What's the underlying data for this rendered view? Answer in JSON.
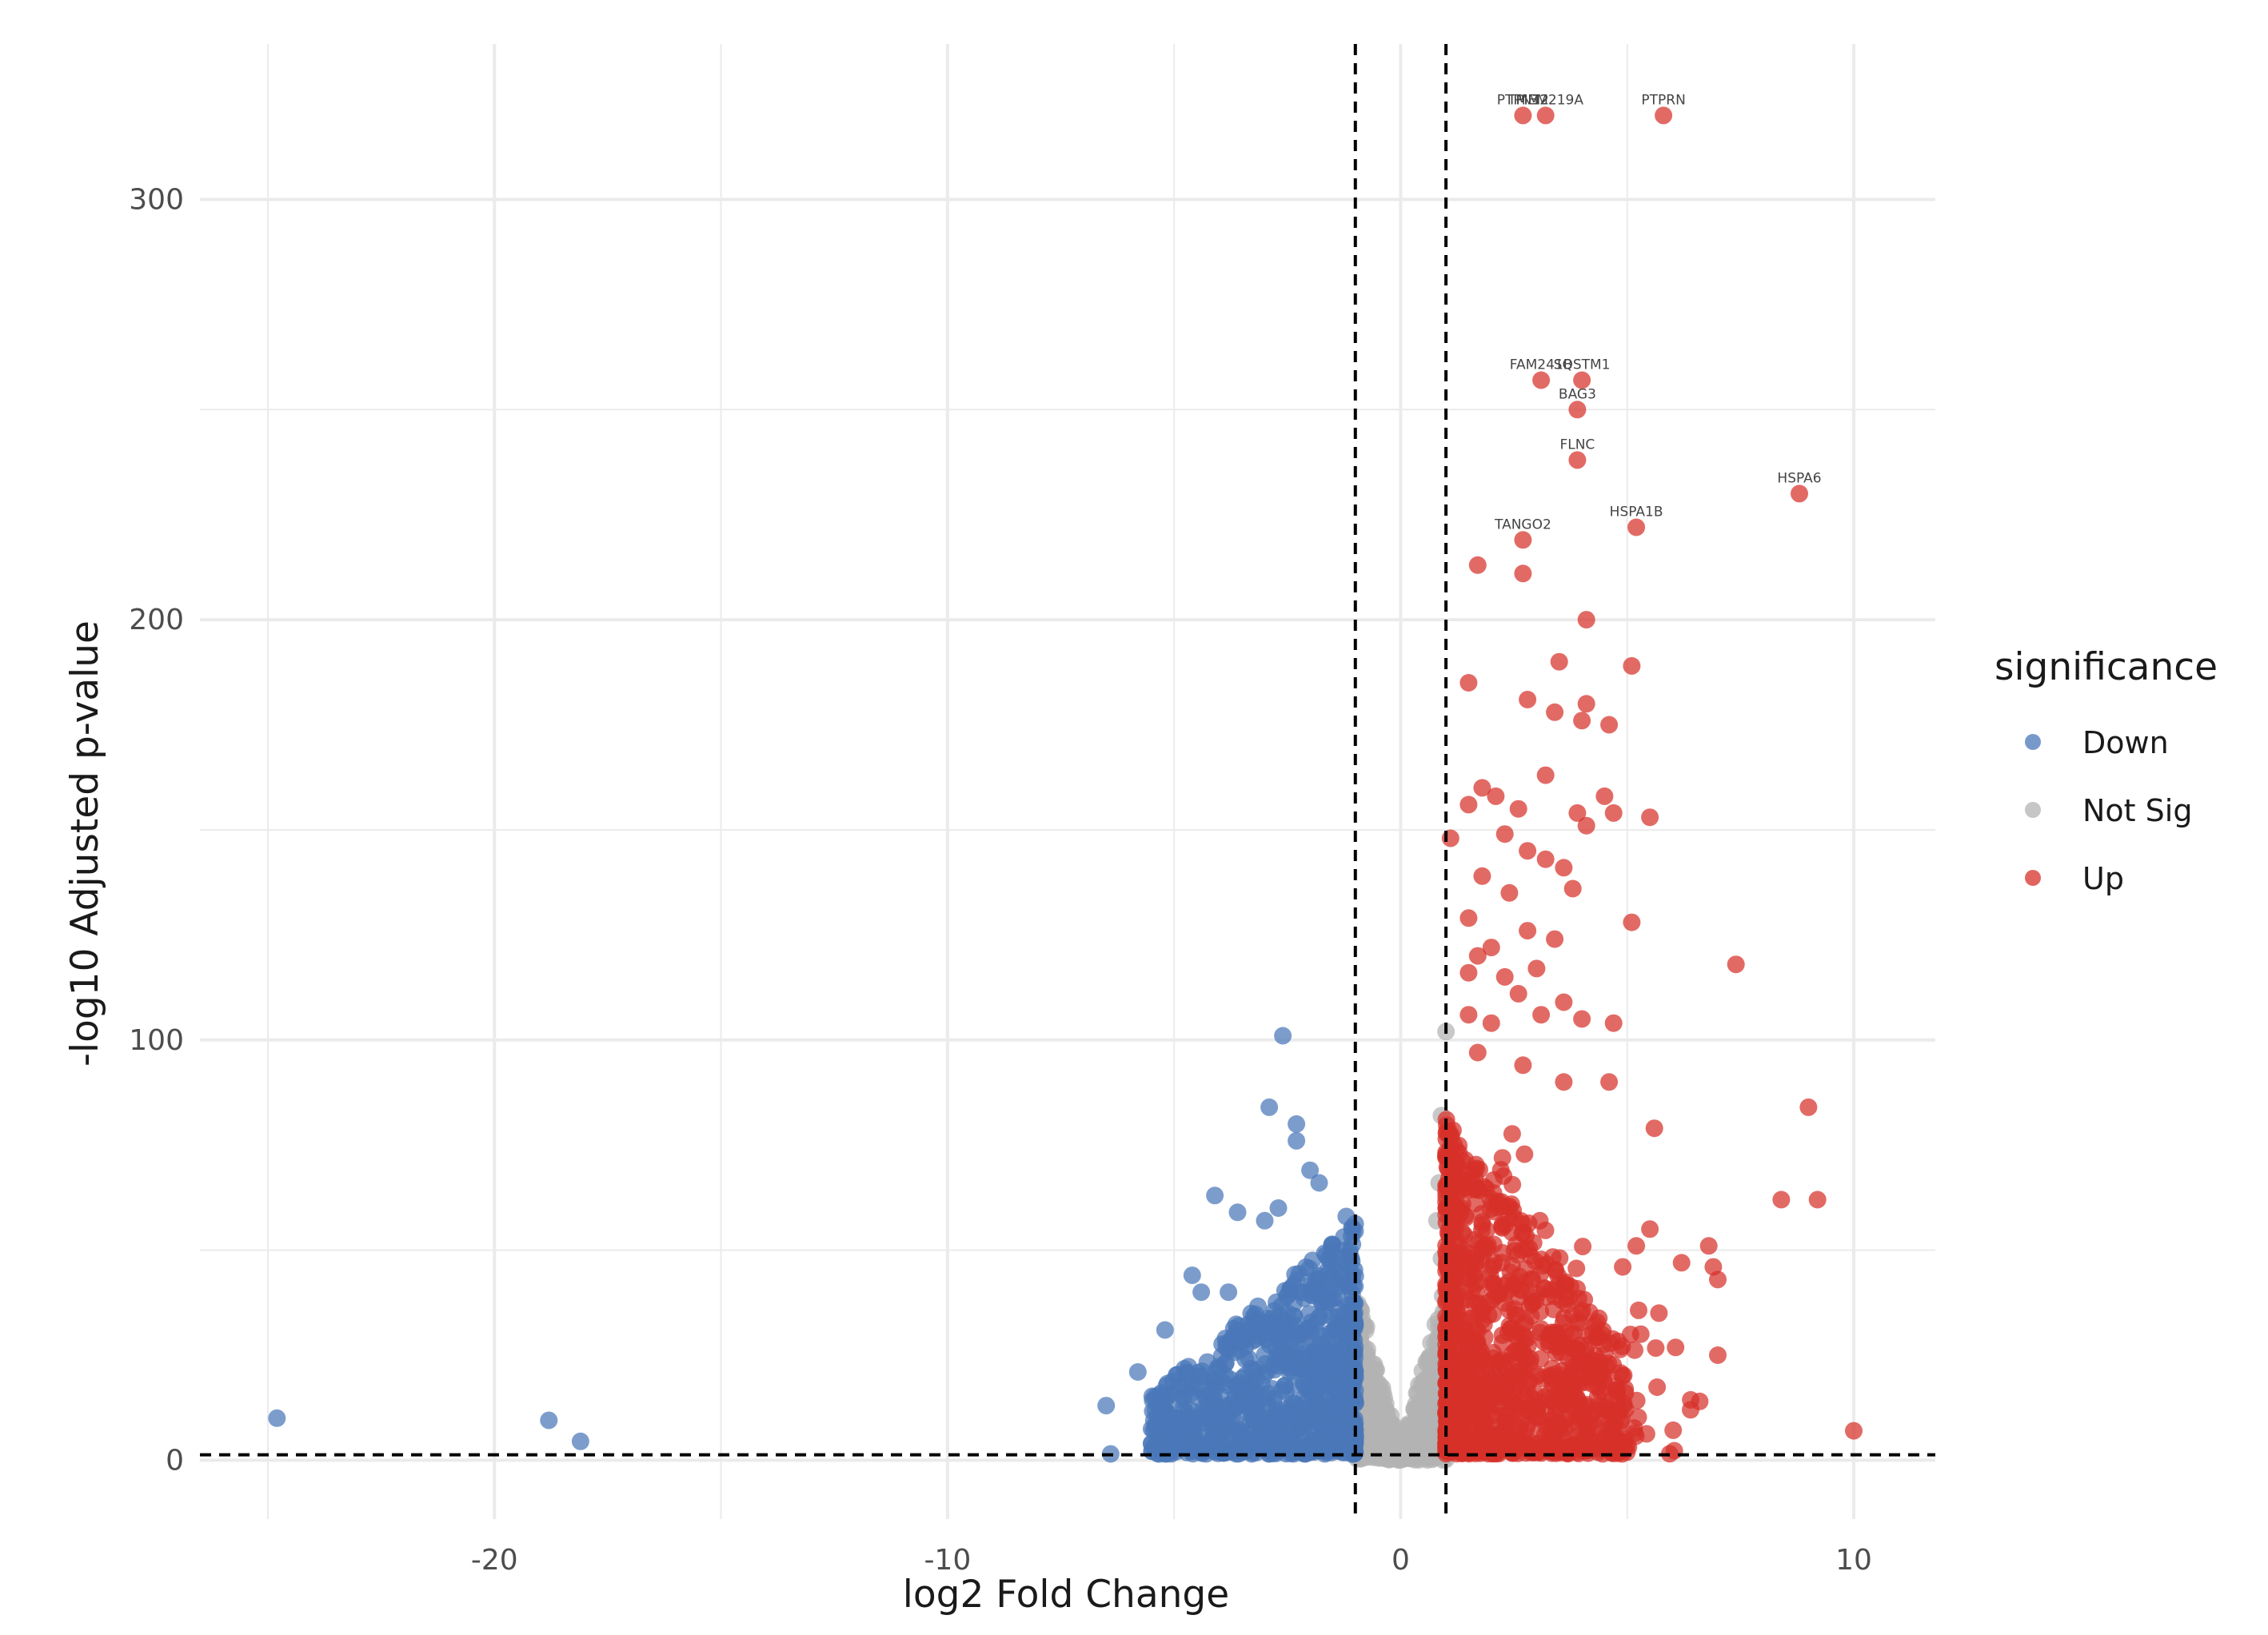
{
  "chart_data": {
    "type": "scatter",
    "xlabel": "log2 Fold Change",
    "ylabel": "-log10 Adjusted p-value",
    "xlim": [
      -26.5,
      11.8
    ],
    "ylim": [
      -14,
      337
    ],
    "x_ticks": [
      -20,
      -10,
      0,
      10
    ],
    "x_tick_labels": [
      "-20",
      "-10",
      "0",
      "10"
    ],
    "y_ticks": [
      0,
      100,
      200,
      300
    ],
    "y_tick_labels": [
      "0",
      "100",
      "200",
      "300"
    ],
    "grid": true,
    "thresholds": {
      "log2fc": [
        -1,
        1
      ],
      "neg_log10_padj": 1.3
    },
    "legend": {
      "title": "significance",
      "placement": "right",
      "items": [
        {
          "name": "Down",
          "color": "#4a77b8"
        },
        {
          "name": "Not Sig",
          "color": "#b3b3b3"
        },
        {
          "name": "Up",
          "color": "#d7302a"
        }
      ]
    },
    "series": [
      {
        "name": "Down",
        "color": "#4a77b8",
        "points": [
          [
            -24.8,
            10
          ],
          [
            -18.8,
            9.5
          ],
          [
            -18.1,
            4.5
          ],
          [
            -2.6,
            101
          ],
          [
            -2.9,
            84
          ],
          [
            -2.3,
            80
          ],
          [
            -2.3,
            76
          ],
          [
            -2.0,
            69
          ],
          [
            -1.8,
            66
          ],
          [
            -4.1,
            63
          ],
          [
            -3.6,
            59
          ],
          [
            -2.7,
            60
          ],
          [
            -3.0,
            57
          ],
          [
            -5.2,
            31
          ],
          [
            -5.8,
            21
          ],
          [
            -4.6,
            44
          ],
          [
            -4.4,
            40
          ],
          [
            -3.8,
            40
          ],
          [
            -6.5,
            13
          ],
          [
            -6.4,
            1.5
          ],
          [
            -1.2,
            58
          ]
        ],
        "bulk": {
          "count": 900,
          "x_range": [
            -5.5,
            -1
          ],
          "y_max": 55,
          "seed": 11
        }
      },
      {
        "name": "Not Sig",
        "color": "#b3b3b3",
        "points": [
          [
            1.0,
            102
          ],
          [
            0.9,
            82
          ],
          [
            0.85,
            66
          ],
          [
            0.8,
            57
          ],
          [
            0.9,
            48
          ]
        ],
        "bulk": {
          "count": 1000,
          "x_range": [
            -1,
            1
          ],
          "y_max": 40,
          "seed": 23
        }
      },
      {
        "name": "Up",
        "color": "#d7302a",
        "points": [
          [
            2.7,
            320
          ],
          [
            3.2,
            320
          ],
          [
            5.8,
            320
          ],
          [
            3.1,
            257
          ],
          [
            4.0,
            257
          ],
          [
            3.9,
            250
          ],
          [
            3.9,
            238
          ],
          [
            8.8,
            230
          ],
          [
            5.2,
            222
          ],
          [
            2.7,
            219
          ],
          [
            1.7,
            213
          ],
          [
            2.7,
            211
          ],
          [
            4.1,
            200
          ],
          [
            3.5,
            190
          ],
          [
            5.1,
            189
          ],
          [
            1.5,
            185
          ],
          [
            2.8,
            181
          ],
          [
            4.1,
            180
          ],
          [
            3.4,
            178
          ],
          [
            4.0,
            176
          ],
          [
            4.6,
            175
          ],
          [
            3.2,
            163
          ],
          [
            1.8,
            160
          ],
          [
            2.6,
            155
          ],
          [
            4.5,
            158
          ],
          [
            3.9,
            154
          ],
          [
            4.7,
            154
          ],
          [
            5.5,
            153
          ],
          [
            1.5,
            156
          ],
          [
            2.1,
            158
          ],
          [
            2.3,
            149
          ],
          [
            4.1,
            151
          ],
          [
            1.1,
            148
          ],
          [
            2.8,
            145
          ],
          [
            3.6,
            141
          ],
          [
            3.2,
            143
          ],
          [
            1.8,
            139
          ],
          [
            3.8,
            136
          ],
          [
            2.4,
            135
          ],
          [
            5.1,
            128
          ],
          [
            1.5,
            129
          ],
          [
            2.8,
            126
          ],
          [
            3.4,
            124
          ],
          [
            2.0,
            122
          ],
          [
            1.7,
            120
          ],
          [
            7.4,
            118
          ],
          [
            1.5,
            116
          ],
          [
            2.3,
            115
          ],
          [
            3.0,
            117
          ],
          [
            2.6,
            111
          ],
          [
            3.6,
            109
          ],
          [
            4.7,
            104
          ],
          [
            1.5,
            106
          ],
          [
            2.0,
            104
          ],
          [
            3.1,
            106
          ],
          [
            4.0,
            105
          ],
          [
            1.7,
            97
          ],
          [
            2.7,
            94
          ],
          [
            3.6,
            90
          ],
          [
            4.6,
            90
          ],
          [
            9.0,
            84
          ],
          [
            5.6,
            79
          ],
          [
            8.4,
            62
          ],
          [
            9.2,
            62
          ],
          [
            6.8,
            51
          ],
          [
            6.9,
            46
          ],
          [
            7.0,
            43
          ],
          [
            6.2,
            47
          ],
          [
            7.0,
            25
          ],
          [
            10.0,
            7
          ],
          [
            5.5,
            55
          ],
          [
            5.2,
            51
          ],
          [
            4.9,
            46
          ],
          [
            5.7,
            35
          ],
          [
            5.3,
            30
          ],
          [
            6.4,
            12
          ],
          [
            6.6,
            14
          ]
        ],
        "bulk": {
          "count": 1100,
          "x_range": [
            1,
            5
          ],
          "y_max": 80,
          "seed": 37
        }
      }
    ],
    "labels": [
      {
        "text": "PTPN12",
        "x": 2.7,
        "y": 320
      },
      {
        "text": "PIM2",
        "x": 2.9,
        "y": 320
      },
      {
        "text": "TMEM219A",
        "x": 3.2,
        "y": 320
      },
      {
        "text": "PTPRN",
        "x": 5.8,
        "y": 320
      },
      {
        "text": "FAM241B",
        "x": 3.1,
        "y": 257
      },
      {
        "text": "SQSTM1",
        "x": 4.0,
        "y": 257
      },
      {
        "text": "BAG3",
        "x": 3.9,
        "y": 250
      },
      {
        "text": "FLNC",
        "x": 3.9,
        "y": 238
      },
      {
        "text": "HSPA6",
        "x": 8.8,
        "y": 230
      },
      {
        "text": "HSPA1B",
        "x": 5.2,
        "y": 222
      },
      {
        "text": "TANGO2",
        "x": 2.7,
        "y": 219
      }
    ]
  }
}
